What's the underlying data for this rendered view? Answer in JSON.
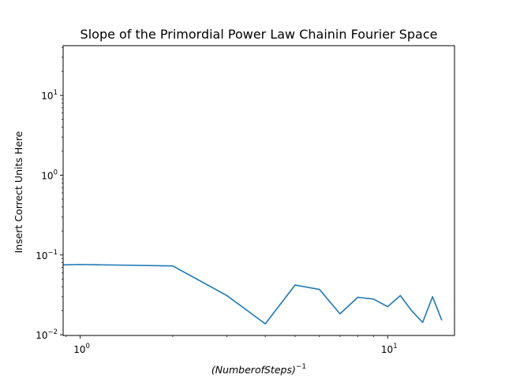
{
  "chart_data": {
    "type": "line",
    "title": "Slope of the Primordial Power Law Chainin Fourier Space",
    "xlabel": "(Number of Steps)^-1",
    "xlabel_parts": {
      "base": "(NumberofSteps)",
      "sup": "−1"
    },
    "ylabel": "Insert Correct Units Here",
    "x_scale": "log",
    "y_scale": "log",
    "xlim": [
      0.88,
      16.5
    ],
    "ylim": [
      0.0098,
      42
    ],
    "grid": false,
    "line_color": "#1f77b4",
    "x_ticks": [
      {
        "value": 1,
        "base": "10",
        "exp": "0"
      },
      {
        "value": 10,
        "base": "10",
        "exp": "1"
      }
    ],
    "y_ticks": [
      {
        "value": 0.01,
        "base": "10",
        "exp": "−2"
      },
      {
        "value": 0.1,
        "base": "10",
        "exp": "−1"
      },
      {
        "value": 1,
        "base": "10",
        "exp": "0"
      },
      {
        "value": 10,
        "base": "10",
        "exp": "1"
      }
    ],
    "series": [
      {
        "x": [
          0,
          1,
          2,
          3,
          4,
          5,
          6,
          7,
          8,
          9,
          10,
          11,
          12,
          13,
          14,
          15
        ],
        "y": [
          0.075,
          0.076,
          0.073,
          0.031,
          0.0137,
          0.042,
          0.037,
          0.0183,
          0.0295,
          0.028,
          0.0225,
          0.031,
          0.0198,
          0.0143,
          0.03,
          0.0152
        ]
      }
    ]
  }
}
